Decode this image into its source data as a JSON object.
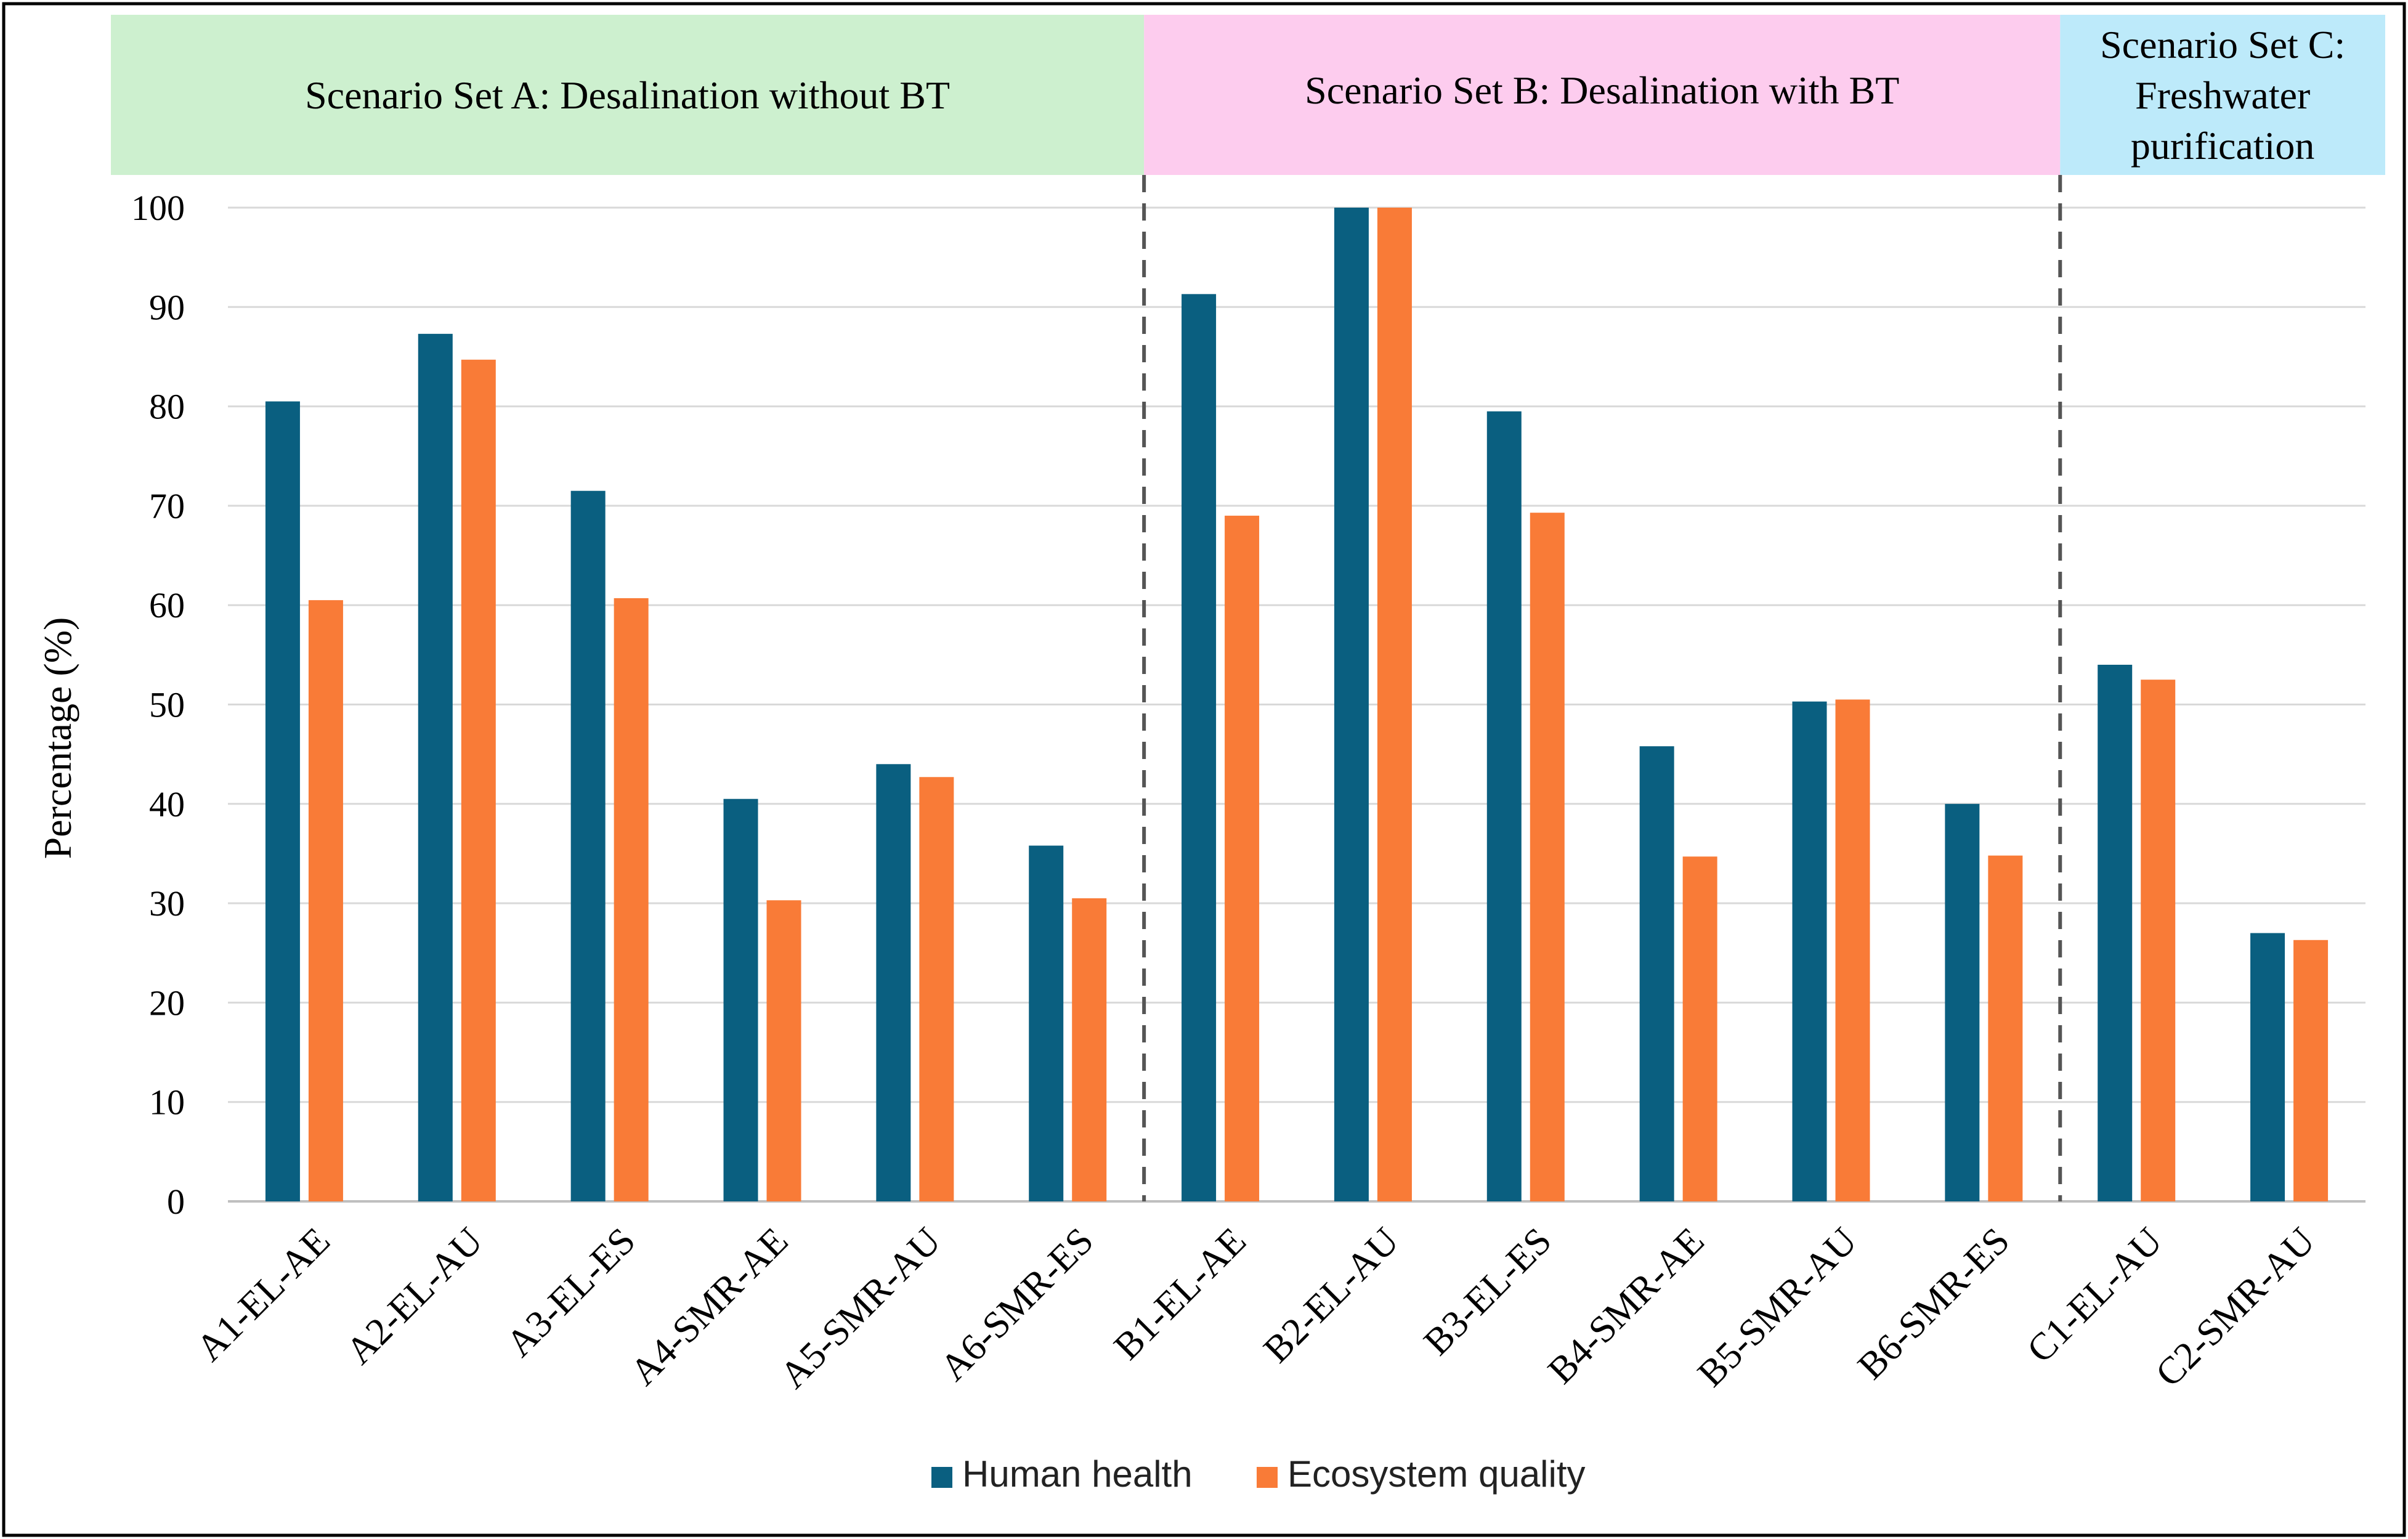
{
  "chart_data": {
    "type": "bar",
    "title": "",
    "xlabel": "",
    "ylabel": "Percentage (%)",
    "ylim": [
      0,
      100
    ],
    "yticks": [
      0,
      10,
      20,
      30,
      40,
      50,
      60,
      70,
      80,
      90,
      100
    ],
    "grid": true,
    "legend_position": "bottom-center",
    "categories": [
      "A1-EL-AE",
      "A2-EL-AU",
      "A3-EL-ES",
      "A4-SMR-AE",
      "A5-SMR-AU",
      "A6-SMR-ES",
      "B1-EL-AE",
      "B2-EL-AU",
      "B3-EL-ES",
      "B4-SMR-AE",
      "B5-SMR-AU",
      "B6-SMR-ES",
      "C1-EL-AU",
      "C2-SMR-AU"
    ],
    "series": [
      {
        "name": "Human health",
        "color": "#0a5f80",
        "values": [
          80.5,
          87.3,
          71.5,
          40.5,
          44.0,
          35.8,
          91.3,
          100.0,
          79.5,
          45.8,
          50.3,
          40.0,
          54.0,
          27.0
        ]
      },
      {
        "name": "Ecosystem quality",
        "color": "#f97b37",
        "values": [
          60.5,
          84.7,
          60.7,
          30.3,
          42.7,
          30.5,
          69.0,
          100.0,
          69.3,
          34.7,
          50.5,
          34.8,
          52.5,
          26.3
        ]
      }
    ],
    "scenario_sets": [
      {
        "lines": [
          "Scenario Set A: Desalination without BT"
        ],
        "color": "#cdf0cf",
        "start_index": 0,
        "end_index": 5
      },
      {
        "lines": [
          "Scenario Set B: Desalination with BT"
        ],
        "color": "#fdccee",
        "start_index": 6,
        "end_index": 11
      },
      {
        "lines": [
          "Scenario Set C:",
          "Freshwater",
          "purification"
        ],
        "color": "#bdeafa",
        "start_index": 12,
        "end_index": 13
      }
    ],
    "separator_color": "#555555",
    "gridline_color": "#d9d9d9",
    "frame_color": "#000000"
  }
}
